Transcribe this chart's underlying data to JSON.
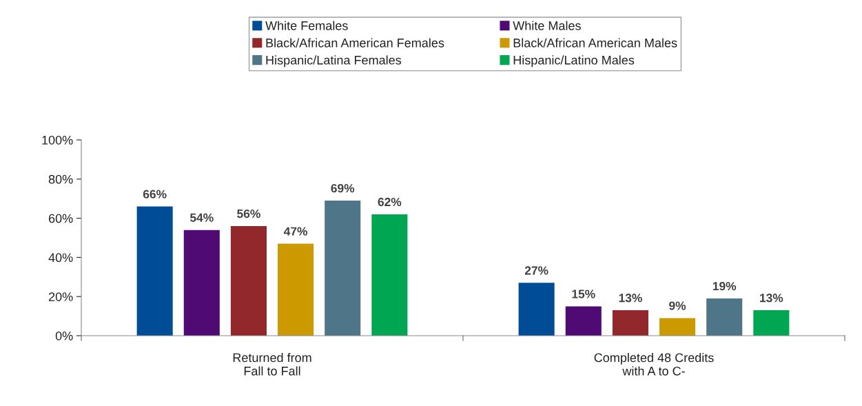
{
  "chart_data": {
    "type": "bar",
    "categories": [
      "Returned from\nFall to Fall",
      "Completed 48 Credits\nwith A to C-"
    ],
    "series": [
      {
        "name": "White Females",
        "color": "#004c97",
        "values": [
          66,
          27
        ],
        "value_labels": [
          "66%",
          "27%"
        ]
      },
      {
        "name": "White Males",
        "color": "#4f0a73",
        "values": [
          54,
          15
        ],
        "value_labels": [
          "54%",
          "15%"
        ]
      },
      {
        "name": "Black/African American Females",
        "color": "#93282c",
        "values": [
          56,
          13
        ],
        "value_labels": [
          "56%",
          "13%"
        ]
      },
      {
        "name": "Black/African American Males",
        "color": "#cc9a00",
        "values": [
          47,
          9
        ],
        "value_labels": [
          "47%",
          "9%"
        ]
      },
      {
        "name": "Hispanic/Latina Females",
        "color": "#4f7588",
        "values": [
          69,
          19
        ],
        "value_labels": [
          "69%",
          "19%"
        ]
      },
      {
        "name": "Hispanic/Latino Males",
        "color": "#00a651",
        "values": [
          62,
          13
        ],
        "value_labels": [
          "62%",
          "13%"
        ]
      }
    ],
    "ylim": [
      0,
      100
    ],
    "yticks": [
      {
        "value": 0,
        "label": "0%"
      },
      {
        "value": 20,
        "label": "20%"
      },
      {
        "value": 40,
        "label": "40%"
      },
      {
        "value": 60,
        "label": "60%"
      },
      {
        "value": 80,
        "label": "80%"
      },
      {
        "value": 100,
        "label": "100%"
      }
    ],
    "grid": false,
    "legend": "top"
  }
}
